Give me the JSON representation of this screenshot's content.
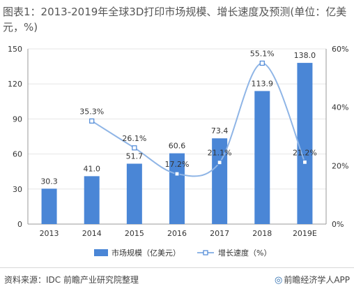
{
  "title": "图表1：2013-2019年全球3D打印市场规模、增长速度及预测(单位：亿美元，%)",
  "footer": {
    "source": "资料来源：IDC 前瞻产业研究院整理",
    "brand": "前瞻经济学人APP",
    "brand_icon": "qianzhan-logo-icon"
  },
  "colors": {
    "bar": "#4a86d6",
    "line": "#8fb5e6",
    "marker_fill": "#ffffff",
    "axis": "#999999",
    "grid": "#e6e6e6",
    "label": "#333333"
  },
  "chart_data": {
    "type": "bar",
    "categories": [
      "2013",
      "2014",
      "2015",
      "2016",
      "2017",
      "2018",
      "2019E"
    ],
    "series": [
      {
        "name": "市场规模（亿美元）",
        "type": "bar",
        "axis": "left",
        "values": [
          30.3,
          41.0,
          51.7,
          60.6,
          73.4,
          113.9,
          138.0
        ],
        "labels": [
          "30.3",
          "41.0",
          "51.7",
          "60.6",
          "73.4",
          "113.9",
          "138.0"
        ]
      },
      {
        "name": "增长速度（%）",
        "type": "line",
        "axis": "right",
        "smooth": true,
        "values": [
          null,
          35.3,
          26.1,
          17.2,
          21.1,
          55.1,
          21.2
        ],
        "labels": [
          null,
          "35.3%",
          "26.1%",
          "17.2%",
          "21.1%",
          "55.1%",
          "21.2%"
        ]
      }
    ],
    "y_left": {
      "min": 0,
      "max": 150,
      "ticks": [
        "0",
        "30",
        "60",
        "90",
        "120",
        "150"
      ]
    },
    "y_right": {
      "min": 0,
      "max": 60,
      "ticks": [
        "0%",
        "20%",
        "40%",
        "60%"
      ]
    },
    "legend": "bottom"
  }
}
